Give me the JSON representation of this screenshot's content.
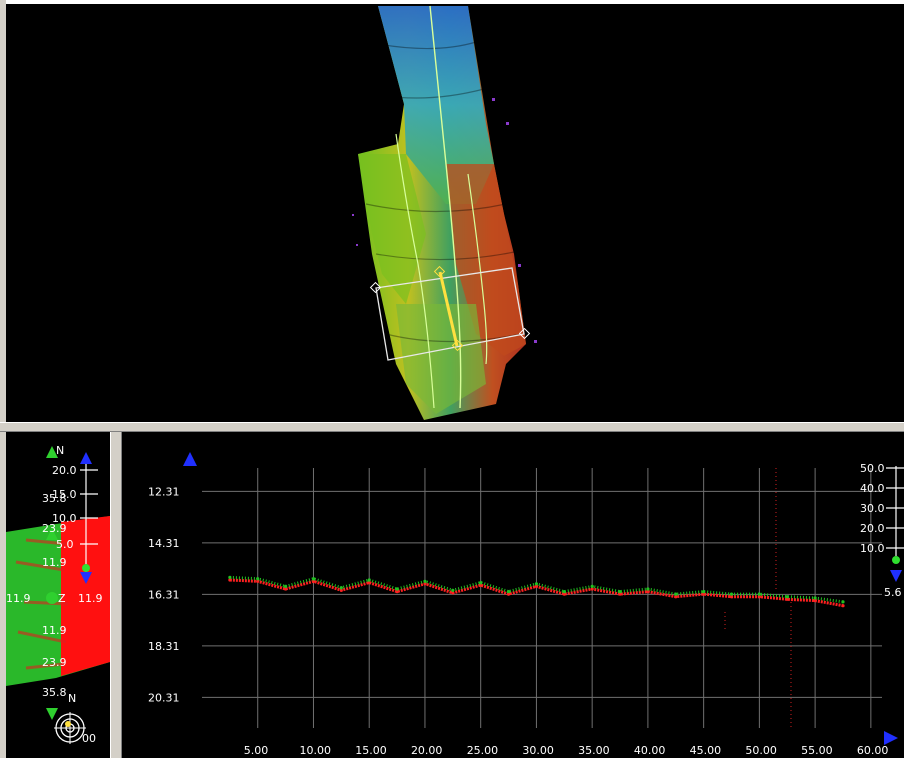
{
  "map_view": {
    "label": "swath-map"
  },
  "side_view": {
    "north_label_top": "N",
    "north_label_bottom": "N",
    "scale_labels": [
      "20.0",
      "15.0",
      "10.0",
      "5.0"
    ],
    "cross_labels_upper": [
      "35.8",
      "23.9",
      "11.9"
    ],
    "cross_labels_lower": [
      "11.9",
      "23.9",
      "35.8"
    ],
    "center_left": "11.9",
    "center_z": "Z",
    "center_right": "11.9",
    "bottom_value": "00"
  },
  "profile_view": {
    "right_scale": [
      "50.0",
      "40.0",
      "30.0",
      "20.0",
      "10.0"
    ],
    "right_value": "5.6"
  },
  "chart_data": {
    "type": "scatter",
    "title": "",
    "xlabel": "",
    "ylabel": "",
    "x_ticks": [
      "5.00",
      "10.00",
      "15.00",
      "20.00",
      "25.00",
      "30.00",
      "35.00",
      "40.00",
      "45.00",
      "50.00",
      "55.00",
      "60.00"
    ],
    "y_ticks": [
      "12.31",
      "14.31",
      "16.31",
      "18.31",
      "20.31"
    ],
    "xlim": [
      0,
      61
    ],
    "ylim": [
      11.4,
      21.5
    ],
    "y_inverted": true,
    "grid": true,
    "series": [
      {
        "color": "#ff2020",
        "x": [
          2.5,
          5,
          7.5,
          10,
          12.5,
          15,
          17.5,
          20,
          22.5,
          25,
          27.5,
          30,
          32.5,
          35,
          37.5,
          40,
          42.5,
          45,
          47.5,
          50,
          52.5,
          55,
          57.5
        ],
        "y": [
          15.75,
          15.8,
          16.1,
          15.8,
          16.15,
          15.85,
          16.2,
          15.9,
          16.25,
          15.95,
          16.3,
          16.0,
          16.3,
          16.1,
          16.3,
          16.2,
          16.4,
          16.3,
          16.4,
          16.4,
          16.5,
          16.55,
          16.75
        ]
      },
      {
        "color": "#20c020",
        "x": [
          2.5,
          5,
          7.5,
          10,
          12.5,
          15,
          17.5,
          20,
          22.5,
          25,
          27.5,
          30,
          32.5,
          35,
          37.5,
          40,
          42.5,
          45,
          47.5,
          50,
          52.5,
          55,
          57.5
        ],
        "y": [
          15.65,
          15.7,
          16.0,
          15.7,
          16.05,
          15.75,
          16.1,
          15.8,
          16.15,
          15.85,
          16.2,
          15.9,
          16.2,
          16.0,
          16.2,
          16.1,
          16.3,
          16.2,
          16.3,
          16.3,
          16.4,
          16.45,
          16.6
        ]
      }
    ]
  }
}
